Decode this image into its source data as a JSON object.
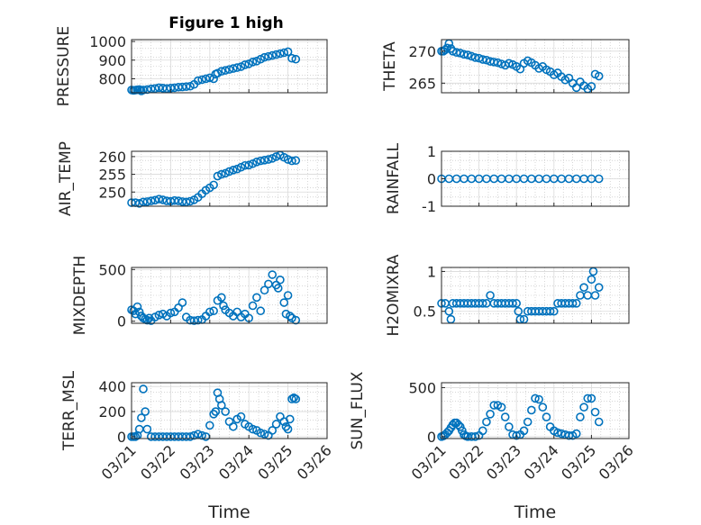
{
  "figure": {
    "title": "Figure 1 high",
    "marker_color": "#0072BD",
    "axis_color": "#262626",
    "grid_color": "#bdbdbd"
  },
  "chart_data": [
    {
      "id": "pressure",
      "type": "scatter",
      "ylabel": "PRESSURE",
      "yticks": [
        "800",
        "900",
        "1000"
      ],
      "ylim": [
        725,
        1010
      ],
      "xlim": [
        0,
        5
      ],
      "grid": true,
      "x": [
        0,
        0.05,
        0.1,
        0.15,
        0.2,
        0.25,
        0.3,
        0.4,
        0.5,
        0.6,
        0.7,
        0.8,
        0.9,
        1.0,
        1.1,
        1.2,
        1.3,
        1.4,
        1.5,
        1.6,
        1.7,
        1.8,
        1.9,
        2.0,
        2.1,
        2.15,
        2.2,
        2.3,
        2.4,
        2.5,
        2.6,
        2.7,
        2.8,
        2.9,
        3.0,
        3.1,
        3.2,
        3.3,
        3.4,
        3.5,
        3.6,
        3.7,
        3.8,
        3.9,
        4.0,
        4.1,
        4.2
      ],
      "y": [
        740,
        738,
        739,
        741,
        742,
        735,
        740,
        742,
        746,
        748,
        752,
        750,
        748,
        750,
        752,
        755,
        756,
        758,
        760,
        770,
        790,
        795,
        800,
        805,
        800,
        825,
        830,
        840,
        845,
        850,
        855,
        860,
        865,
        875,
        880,
        890,
        895,
        905,
        915,
        920,
        925,
        930,
        935,
        940,
        945,
        910,
        905
      ]
    },
    {
      "id": "theta",
      "type": "scatter",
      "ylabel": "THETA",
      "yticks": [
        "265",
        "270"
      ],
      "ylim": [
        263.5,
        271.8
      ],
      "xlim": [
        0,
        5
      ],
      "grid": true,
      "x": [
        0,
        0.05,
        0.1,
        0.15,
        0.2,
        0.25,
        0.3,
        0.4,
        0.5,
        0.6,
        0.7,
        0.8,
        0.9,
        1.0,
        1.1,
        1.2,
        1.3,
        1.4,
        1.5,
        1.6,
        1.7,
        1.8,
        1.9,
        2.0,
        2.1,
        2.2,
        2.3,
        2.4,
        2.5,
        2.6,
        2.7,
        2.8,
        2.9,
        3.0,
        3.1,
        3.2,
        3.3,
        3.4,
        3.5,
        3.6,
        3.7,
        3.8,
        3.9,
        4.0,
        4.1,
        4.2
      ],
      "y": [
        270,
        270,
        270.2,
        270.5,
        271.2,
        270.4,
        270,
        269.8,
        269.7,
        269.5,
        269.4,
        269.2,
        269,
        268.9,
        268.7,
        268.6,
        268.4,
        268.3,
        268.2,
        268,
        267.8,
        268.1,
        267.9,
        267.6,
        267.2,
        268.1,
        268.5,
        268.2,
        267.8,
        267.3,
        267.6,
        267.1,
        266.8,
        266.3,
        266.6,
        266,
        265.5,
        265.8,
        265,
        264.3,
        265.2,
        264.6,
        264.1,
        264.5,
        266.4,
        266.1
      ]
    },
    {
      "id": "air_temp",
      "type": "scatter",
      "ylabel": "AIR_TEMP",
      "yticks": [
        "250",
        "255",
        "260"
      ],
      "ylim": [
        246,
        261.5
      ],
      "xlim": [
        0,
        5
      ],
      "grid": true,
      "x": [
        0,
        0.1,
        0.2,
        0.3,
        0.4,
        0.5,
        0.6,
        0.7,
        0.8,
        0.9,
        1.0,
        1.1,
        1.2,
        1.3,
        1.4,
        1.5,
        1.6,
        1.7,
        1.8,
        1.9,
        2.0,
        2.1,
        2.2,
        2.3,
        2.4,
        2.5,
        2.6,
        2.7,
        2.8,
        2.9,
        3.0,
        3.1,
        3.2,
        3.3,
        3.4,
        3.5,
        3.6,
        3.7,
        3.8,
        3.9,
        4.0,
        4.1,
        4.2
      ],
      "y": [
        247,
        247,
        246.8,
        247.2,
        247.3,
        247.5,
        247.7,
        248,
        247.8,
        247.5,
        247.4,
        247.6,
        247.5,
        247.3,
        247.2,
        247.4,
        247.8,
        248.5,
        249.5,
        250.5,
        251.2,
        252,
        254.5,
        255,
        255.3,
        255.8,
        256.2,
        256.5,
        257,
        257.5,
        257.6,
        258,
        258.5,
        258.8,
        259,
        259.2,
        259.5,
        260,
        260.4,
        259.8,
        259.2,
        258.8,
        258.9
      ]
    },
    {
      "id": "rainfall",
      "type": "scatter",
      "ylabel": "RAINFALL",
      "yticks": [
        "-1",
        "0",
        "1"
      ],
      "ylim": [
        -1,
        1
      ],
      "xlim": [
        0,
        5
      ],
      "grid": true,
      "x": [
        0,
        0.2,
        0.4,
        0.6,
        0.8,
        1.0,
        1.2,
        1.4,
        1.6,
        1.8,
        2.0,
        2.2,
        2.4,
        2.6,
        2.8,
        3.0,
        3.2,
        3.4,
        3.6,
        3.8,
        4.0,
        4.2
      ],
      "y": [
        0,
        0,
        0,
        0,
        0,
        0,
        0,
        0,
        0,
        0,
        0,
        0,
        0,
        0,
        0,
        0,
        0,
        0,
        0,
        0,
        0,
        0
      ]
    },
    {
      "id": "mixdepth",
      "type": "scatter",
      "ylabel": "MIXDEPTH",
      "yticks": [
        "0",
        "500"
      ],
      "ylim": [
        -20,
        520
      ],
      "xlim": [
        0,
        5
      ],
      "grid": true,
      "x": [
        0,
        0.05,
        0.1,
        0.15,
        0.2,
        0.25,
        0.3,
        0.35,
        0.4,
        0.45,
        0.5,
        0.6,
        0.7,
        0.8,
        0.9,
        1.0,
        1.1,
        1.2,
        1.3,
        1.4,
        1.5,
        1.6,
        1.7,
        1.8,
        1.9,
        2.0,
        2.1,
        2.2,
        2.3,
        2.35,
        2.4,
        2.5,
        2.6,
        2.7,
        2.8,
        2.9,
        3.0,
        3.1,
        3.2,
        3.3,
        3.4,
        3.5,
        3.6,
        3.7,
        3.75,
        3.8,
        3.9,
        3.95,
        4.0,
        4.05,
        4.1,
        4.2
      ],
      "y": [
        110,
        100,
        70,
        140,
        90,
        50,
        30,
        20,
        10,
        30,
        5,
        40,
        60,
        70,
        50,
        80,
        90,
        130,
        180,
        40,
        10,
        5,
        10,
        15,
        50,
        90,
        100,
        200,
        230,
        150,
        110,
        80,
        50,
        90,
        40,
        70,
        30,
        150,
        230,
        100,
        300,
        360,
        450,
        350,
        320,
        400,
        180,
        70,
        250,
        50,
        30,
        10
      ]
    },
    {
      "id": "h2omixra",
      "type": "scatter",
      "ylabel": "H2OMIXRA",
      "yticks": [
        "0.5",
        "1"
      ],
      "ylim": [
        0.35,
        1.05
      ],
      "xlim": [
        0,
        5
      ],
      "grid": true,
      "x": [
        0,
        0.1,
        0.2,
        0.25,
        0.3,
        0.4,
        0.5,
        0.6,
        0.7,
        0.8,
        0.9,
        1.0,
        1.1,
        1.2,
        1.3,
        1.4,
        1.5,
        1.6,
        1.7,
        1.8,
        1.9,
        2.0,
        2.05,
        2.1,
        2.2,
        2.3,
        2.4,
        2.5,
        2.6,
        2.7,
        2.8,
        2.9,
        3.0,
        3.1,
        3.2,
        3.3,
        3.4,
        3.5,
        3.6,
        3.7,
        3.8,
        3.9,
        4.0,
        4.05,
        4.1,
        4.2
      ],
      "y": [
        0.6,
        0.6,
        0.5,
        0.4,
        0.6,
        0.6,
        0.6,
        0.6,
        0.6,
        0.6,
        0.6,
        0.6,
        0.6,
        0.6,
        0.7,
        0.6,
        0.6,
        0.6,
        0.6,
        0.6,
        0.6,
        0.6,
        0.5,
        0.4,
        0.4,
        0.5,
        0.5,
        0.5,
        0.5,
        0.5,
        0.5,
        0.5,
        0.5,
        0.6,
        0.6,
        0.6,
        0.6,
        0.6,
        0.6,
        0.7,
        0.8,
        0.7,
        0.9,
        1.0,
        0.7,
        0.8
      ]
    },
    {
      "id": "terr_msl",
      "type": "scatter",
      "ylabel": "TERR_MSL",
      "yticks": [
        "0",
        "200",
        "400"
      ],
      "ylim": [
        -15,
        430
      ],
      "xlim": [
        0,
        5
      ],
      "grid": true,
      "x": [
        0,
        0.05,
        0.1,
        0.15,
        0.2,
        0.25,
        0.3,
        0.35,
        0.4,
        0.5,
        0.6,
        0.7,
        0.8,
        0.9,
        1.0,
        1.1,
        1.2,
        1.3,
        1.4,
        1.5,
        1.6,
        1.7,
        1.8,
        1.9,
        2.0,
        2.1,
        2.15,
        2.2,
        2.25,
        2.3,
        2.4,
        2.5,
        2.6,
        2.7,
        2.8,
        2.9,
        3.0,
        3.1,
        3.2,
        3.3,
        3.4,
        3.5,
        3.6,
        3.7,
        3.8,
        3.9,
        3.95,
        4.0,
        4.05,
        4.1,
        4.15,
        4.2
      ],
      "y": [
        0,
        0,
        0,
        10,
        60,
        150,
        380,
        200,
        60,
        0,
        0,
        0,
        0,
        0,
        0,
        0,
        0,
        0,
        0,
        0,
        10,
        20,
        10,
        0,
        90,
        180,
        200,
        350,
        300,
        250,
        200,
        120,
        80,
        140,
        160,
        100,
        80,
        60,
        50,
        30,
        20,
        10,
        50,
        100,
        160,
        120,
        80,
        60,
        140,
        300,
        310,
        300
      ]
    },
    {
      "id": "sun_flux",
      "type": "scatter",
      "ylabel": "SUN_FLUX",
      "yticks": [
        "0",
        "500"
      ],
      "ylim": [
        -20,
        550
      ],
      "xlim": [
        0,
        5
      ],
      "grid": true,
      "x": [
        0,
        0.05,
        0.1,
        0.15,
        0.2,
        0.25,
        0.3,
        0.35,
        0.4,
        0.45,
        0.5,
        0.55,
        0.6,
        0.65,
        0.7,
        0.8,
        0.9,
        1.0,
        1.1,
        1.2,
        1.3,
        1.4,
        1.5,
        1.6,
        1.7,
        1.8,
        1.9,
        2.0,
        2.1,
        2.2,
        2.3,
        2.4,
        2.5,
        2.6,
        2.7,
        2.8,
        2.9,
        3.0,
        3.1,
        3.2,
        3.3,
        3.4,
        3.5,
        3.6,
        3.7,
        3.8,
        3.9,
        4.0,
        4.1,
        4.2
      ],
      "y": [
        0,
        5,
        20,
        40,
        60,
        90,
        120,
        140,
        140,
        120,
        100,
        60,
        20,
        5,
        0,
        0,
        0,
        10,
        60,
        150,
        230,
        320,
        320,
        300,
        200,
        100,
        20,
        10,
        20,
        60,
        150,
        270,
        390,
        380,
        300,
        200,
        100,
        60,
        40,
        30,
        20,
        10,
        10,
        30,
        200,
        300,
        390,
        390,
        250,
        150
      ]
    }
  ],
  "xaxis": {
    "ticks": [
      "03/21",
      "03/22",
      "03/23",
      "03/24",
      "03/25",
      "03/26"
    ],
    "label": "Time"
  }
}
